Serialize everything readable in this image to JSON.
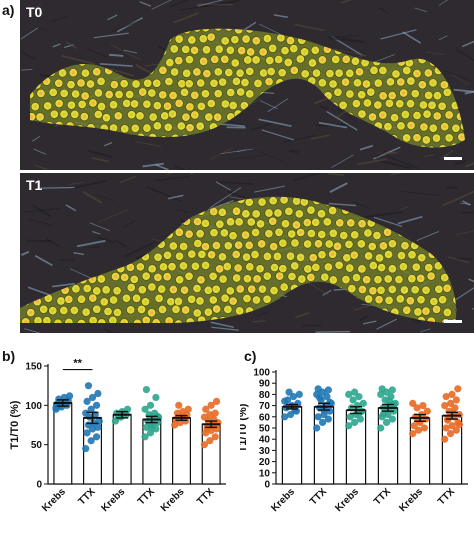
{
  "panel_a": {
    "letter": "a)",
    "images": [
      {
        "label": "T0"
      },
      {
        "label": "T1"
      }
    ],
    "colors": {
      "background": "#2e2a30",
      "tissue": "#6f7a2a",
      "cell": "#e6d63a",
      "cell_center": "#f4b14a",
      "fibers": "#8fb0c8"
    }
  },
  "panel_b": {
    "letter": "b)"
  },
  "panel_c": {
    "letter": "c)"
  },
  "chart_data": [
    {
      "id": "b",
      "type": "bar",
      "ylabel": "T1/T0 (%)",
      "ylim": [
        0,
        150
      ],
      "yticks": [
        0,
        50,
        100,
        150
      ],
      "categories": [
        "Krebs",
        "TTX",
        "Krebs",
        "TTX",
        "Krebs",
        "TTX"
      ],
      "colors": [
        "#1f77b4",
        "#1f77b4",
        "#2ca58d",
        "#2ca58d",
        "#e86a24",
        "#e86a24"
      ],
      "values": [
        103,
        84,
        88,
        82,
        84,
        76
      ],
      "sem": [
        4,
        7,
        4,
        4,
        3,
        4
      ],
      "points": [
        [
          95,
          98,
          100,
          102,
          104,
          106,
          108,
          110,
          112,
          100,
          103,
          97
        ],
        [
          45,
          55,
          60,
          65,
          70,
          72,
          75,
          78,
          80,
          85,
          88,
          90,
          95,
          100,
          105,
          110,
          115,
          125
        ],
        [
          80,
          85,
          88,
          90,
          92,
          95,
          85,
          90
        ],
        [
          60,
          65,
          70,
          72,
          75,
          78,
          80,
          82,
          85,
          88,
          90,
          95,
          100,
          110,
          120,
          72,
          86
        ],
        [
          75,
          78,
          80,
          82,
          85,
          88,
          90,
          92,
          95,
          100,
          83
        ],
        [
          50,
          55,
          60,
          65,
          68,
          70,
          72,
          75,
          78,
          80,
          82,
          85,
          88,
          90,
          95,
          100,
          105,
          70,
          74
        ]
      ],
      "significance": {
        "from": 0,
        "to": 1,
        "label": "**"
      }
    },
    {
      "id": "c",
      "type": "bar",
      "ylabel": "T1/T0 (%)",
      "ylim": [
        0,
        100
      ],
      "yticks": [
        0,
        10,
        20,
        30,
        40,
        50,
        60,
        70,
        80,
        90,
        100
      ],
      "categories": [
        "Krebs",
        "TTX",
        "Krebs",
        "TTX",
        "Krebs",
        "TTX"
      ],
      "colors": [
        "#1f77b4",
        "#1f77b4",
        "#2ca58d",
        "#2ca58d",
        "#e86a24",
        "#e86a24"
      ],
      "values": [
        69,
        69,
        66,
        68,
        59,
        61
      ],
      "sem": [
        2,
        3,
        3,
        3,
        3,
        3
      ],
      "points": [
        [
          60,
          62,
          65,
          68,
          70,
          72,
          75,
          78,
          80,
          82,
          66,
          74
        ],
        [
          50,
          55,
          58,
          60,
          62,
          65,
          68,
          70,
          72,
          75,
          78,
          80,
          82,
          84,
          85,
          66,
          73,
          77
        ],
        [
          52,
          55,
          58,
          60,
          62,
          65,
          68,
          70,
          72,
          75,
          78,
          80,
          82,
          64
        ],
        [
          50,
          55,
          58,
          60,
          62,
          65,
          68,
          70,
          72,
          75,
          78,
          80,
          82,
          84,
          85,
          67,
          71,
          63,
          74
        ],
        [
          45,
          48,
          50,
          52,
          55,
          58,
          60,
          62,
          65,
          68,
          70,
          72,
          57
        ],
        [
          40,
          45,
          48,
          50,
          52,
          55,
          58,
          60,
          62,
          65,
          68,
          70,
          72,
          75,
          78,
          80,
          85,
          57,
          63,
          53
        ]
      ]
    }
  ]
}
